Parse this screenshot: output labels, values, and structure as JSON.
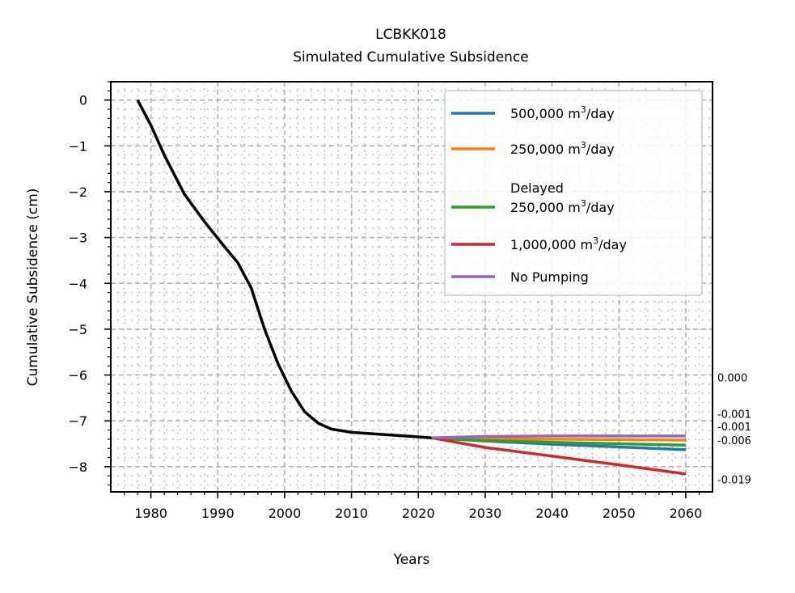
{
  "chart_data": {
    "type": "line",
    "title": "LCBKK018",
    "subtitle": "Simulated Cumulative Subsidence",
    "xlabel": "Years",
    "ylabel": "Cumulative Subsidence (cm)",
    "xlim": [
      1974,
      2064
    ],
    "ylim": [
      -8.55,
      0.4
    ],
    "xticks": [
      1980,
      1990,
      2000,
      2010,
      2020,
      2030,
      2040,
      2050,
      2060
    ],
    "yticks": [
      0,
      -1,
      -2,
      -3,
      -4,
      -5,
      -6,
      -7,
      -8
    ],
    "ytick_labels": [
      "0",
      "−1",
      "−2",
      "−3",
      "−4",
      "−5",
      "−6",
      "−7",
      "−8"
    ],
    "grid": true,
    "legend_position": "top-right",
    "observed": {
      "color": "#000000",
      "x": [
        1978,
        1980,
        1982,
        1985,
        1988,
        1991,
        1993,
        1995,
        1997,
        1999,
        2001,
        2003,
        2005,
        2007,
        2010,
        2015,
        2020,
        2022
      ],
      "y": [
        0.0,
        -0.55,
        -1.2,
        -2.05,
        -2.65,
        -3.2,
        -3.55,
        -4.1,
        -5.0,
        -5.75,
        -6.35,
        -6.8,
        -7.05,
        -7.18,
        -7.25,
        -7.3,
        -7.35,
        -7.37
      ]
    },
    "series": [
      {
        "name": "500,000 m³/day",
        "color": "#1f77b4",
        "x": [
          2022,
          2030,
          2040,
          2050,
          2060
        ],
        "y": [
          -7.37,
          -7.44,
          -7.51,
          -7.57,
          -7.63
        ]
      },
      {
        "name": "250,000 m³/day",
        "color": "#ff7f0e",
        "x": [
          2022,
          2030,
          2040,
          2050,
          2060
        ],
        "y": [
          -7.37,
          -7.39,
          -7.4,
          -7.41,
          -7.42
        ]
      },
      {
        "name": "Delayed 250,000 m³/day",
        "color": "#2ca02c",
        "x": [
          2022,
          2030,
          2040,
          2050,
          2060
        ],
        "y": [
          -7.37,
          -7.43,
          -7.47,
          -7.5,
          -7.53
        ]
      },
      {
        "name": "1,000,000 m³/day",
        "color": "#d62728",
        "x": [
          2022,
          2030,
          2040,
          2050,
          2060
        ],
        "y": [
          -7.37,
          -7.58,
          -7.77,
          -7.96,
          -8.16
        ]
      },
      {
        "name": "No Pumping",
        "color": "#9467bd",
        "x": [
          2022,
          2030,
          2040,
          2050,
          2060
        ],
        "y": [
          -7.37,
          -7.34,
          -7.33,
          -7.33,
          -7.33
        ]
      }
    ],
    "legend_entries": [
      {
        "lines": [
          "500,000 m",
          "/day"
        ],
        "sup": "3",
        "color": "#1f77b4"
      },
      {
        "lines": [
          "250,000 m",
          "/day"
        ],
        "sup": "3",
        "color": "#ff7f0e"
      },
      {
        "pre": "Delayed",
        "lines": [
          "250,000 m",
          "/day"
        ],
        "sup": "3",
        "color": "#2ca02c"
      },
      {
        "lines": [
          "1,000,000 m",
          "/day"
        ],
        "sup": "3",
        "color": "#d62728"
      },
      {
        "text": "No Pumping",
        "color": "#9467bd"
      }
    ],
    "end_labels": [
      {
        "text": "0.000",
        "y": -6.05
      },
      {
        "text": "-0.001",
        "y": -6.85
      },
      {
        "text": "-0.001",
        "y": -7.12
      },
      {
        "text": "-0.006",
        "y": -7.42
      },
      {
        "text": "-0.019",
        "y": -8.28
      }
    ]
  }
}
